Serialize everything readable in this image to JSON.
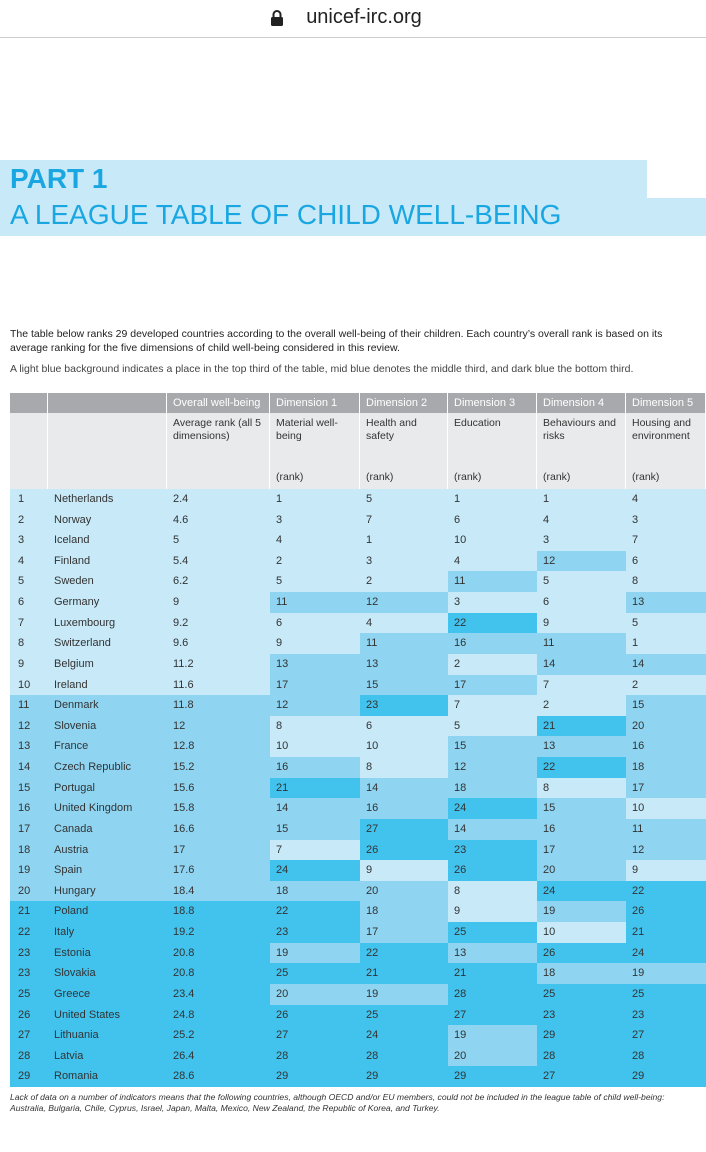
{
  "browser": {
    "url": "unicef-irc.org"
  },
  "header": {
    "line1": "PART 1",
    "line2": "A LEAGUE TABLE OF CHILD WELL-BEING"
  },
  "intro": [
    "The table below ranks 29 developed countries according to the overall well-being of their children. Each country’s overall rank is based on its average ranking for the five dimensions of child well-being considered in this review.",
    "A light blue background indicates a place in the top third of the table, mid blue denotes the middle third, and dark blue the bottom third."
  ],
  "table": {
    "columns": [
      "Overall well-being",
      "Dimension 1",
      "Dimension 2",
      "Dimension 3",
      "Dimension 4",
      "Dimension 5"
    ],
    "subheaders": [
      "Average rank (all 5 dimensions)",
      "Material well-being",
      "Health and safety",
      "Education",
      "Behaviours and risks",
      "Housing and environment"
    ],
    "unit_labels": [
      "(rank)",
      "(rank)",
      "(rank)",
      "(rank)",
      "(rank)"
    ],
    "band_colors": [
      "#c7e9f8",
      "#8fd5f2",
      "#41c3ee"
    ],
    "rows": [
      [
        1,
        "Netherlands",
        2.4,
        1,
        5,
        1,
        1,
        4
      ],
      [
        2,
        "Norway",
        4.6,
        3,
        7,
        6,
        4,
        3
      ],
      [
        3,
        "Iceland",
        5,
        4,
        1,
        10,
        3,
        7
      ],
      [
        4,
        "Finland",
        5.4,
        2,
        3,
        4,
        12,
        6
      ],
      [
        5,
        "Sweden",
        6.2,
        5,
        2,
        11,
        5,
        8
      ],
      [
        6,
        "Germany",
        9,
        11,
        12,
        3,
        6,
        13
      ],
      [
        7,
        "Luxembourg",
        9.2,
        6,
        4,
        22,
        9,
        5
      ],
      [
        8,
        "Switzerland",
        9.6,
        9,
        11,
        16,
        11,
        1
      ],
      [
        9,
        "Belgium",
        11.2,
        13,
        13,
        2,
        14,
        14
      ],
      [
        10,
        "Ireland",
        11.6,
        17,
        15,
        17,
        7,
        2
      ],
      [
        11,
        "Denmark",
        11.8,
        12,
        23,
        7,
        2,
        15
      ],
      [
        12,
        "Slovenia",
        12,
        8,
        6,
        5,
        21,
        20
      ],
      [
        13,
        "France",
        12.8,
        10,
        10,
        15,
        13,
        16
      ],
      [
        14,
        "Czech Republic",
        15.2,
        16,
        8,
        12,
        22,
        18
      ],
      [
        15,
        "Portugal",
        15.6,
        21,
        14,
        18,
        8,
        17
      ],
      [
        16,
        "United Kingdom",
        15.8,
        14,
        16,
        24,
        15,
        10
      ],
      [
        17,
        "Canada",
        16.6,
        15,
        27,
        14,
        16,
        11
      ],
      [
        18,
        "Austria",
        17,
        7,
        26,
        23,
        17,
        12
      ],
      [
        19,
        "Spain",
        17.6,
        24,
        9,
        26,
        20,
        9
      ],
      [
        20,
        "Hungary",
        18.4,
        18,
        20,
        8,
        24,
        22
      ],
      [
        21,
        "Poland",
        18.8,
        22,
        18,
        9,
        19,
        26
      ],
      [
        22,
        "Italy",
        19.2,
        23,
        17,
        25,
        10,
        21
      ],
      [
        23,
        "Estonia",
        20.8,
        19,
        22,
        13,
        26,
        24
      ],
      [
        23,
        "Slovakia",
        20.8,
        25,
        21,
        21,
        18,
        19
      ],
      [
        25,
        "Greece",
        23.4,
        20,
        19,
        28,
        25,
        25
      ],
      [
        26,
        "United States",
        24.8,
        26,
        25,
        27,
        23,
        23
      ],
      [
        27,
        "Lithuania",
        25.2,
        27,
        24,
        19,
        29,
        27
      ],
      [
        28,
        "Latvia",
        26.4,
        28,
        28,
        20,
        28,
        28
      ],
      [
        29,
        "Romania",
        28.6,
        29,
        29,
        29,
        27,
        29
      ]
    ]
  },
  "footnote": "Lack of data on a number of indicators means that the following countries, although OECD and/or EU members, could not be included in the league table of child well-being: Australia, Bulgaria, Chile, Cyprus, Israel, Japan, Malta, Mexico, New Zealand, the Republic of Korea, and Turkey."
}
